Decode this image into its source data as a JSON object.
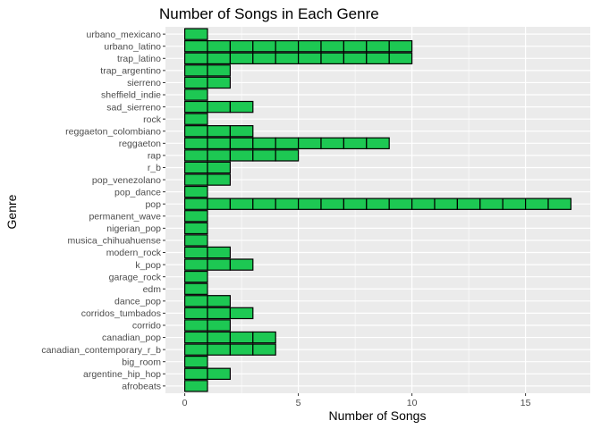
{
  "chart_data": {
    "type": "bar",
    "orientation": "horizontal",
    "title": "Number of Songs in Each Genre",
    "xlabel": "Number of Songs",
    "ylabel": "Genre",
    "xlim": [
      -0.85,
      17.85
    ],
    "xticks": [
      0,
      5,
      10,
      15
    ],
    "grid": true,
    "bar_style": "stacked unit segments, one per song",
    "colors": {
      "fill": "#1DC853",
      "outline": "#000000",
      "panel": "#EBEBEB",
      "grid": "#FFFFFF"
    },
    "categories": [
      "afrobeats",
      "argentine_hip_hop",
      "big_room",
      "canadian_contemporary_r_b",
      "canadian_pop",
      "corrido",
      "corridos_tumbados",
      "dance_pop",
      "edm",
      "garage_rock",
      "k_pop",
      "modern_rock",
      "musica_chihuahuense",
      "nigerian_pop",
      "permanent_wave",
      "pop",
      "pop_dance",
      "pop_venezolano",
      "r_b",
      "rap",
      "reggaeton",
      "reggaeton_colombiano",
      "rock",
      "sad_sierreno",
      "sheffield_indie",
      "sierreno",
      "trap_argentino",
      "trap_latino",
      "urbano_latino",
      "urbano_mexicano"
    ],
    "values": [
      1,
      2,
      1,
      4,
      4,
      2,
      3,
      2,
      1,
      1,
      3,
      2,
      1,
      1,
      1,
      17,
      1,
      2,
      2,
      5,
      9,
      3,
      1,
      3,
      1,
      2,
      2,
      10,
      10,
      1
    ]
  }
}
